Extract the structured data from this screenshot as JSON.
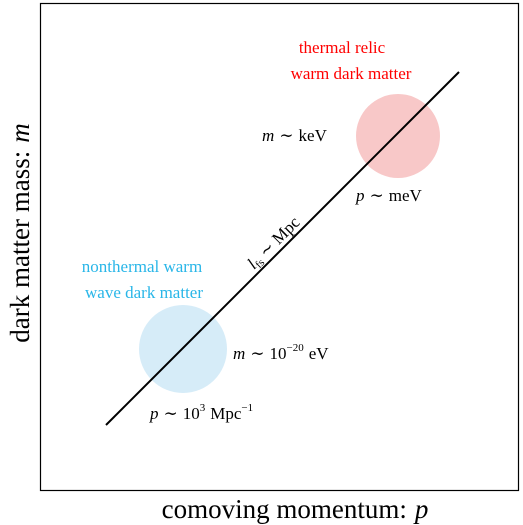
{
  "axes": {
    "xlabel_text": "comoving momentum:",
    "xlabel_var": "p",
    "ylabel_text": "dark matter mass:",
    "ylabel_var": "m"
  },
  "line_label": {
    "var": "l",
    "sub": "fs",
    "rel": "∼",
    "unit": "Mpc"
  },
  "thermal": {
    "title_line1": "thermal relic",
    "title_line2": "warm dark matter",
    "mass_var": "m",
    "mass_rel": "∼",
    "mass_unit": "keV",
    "mom_var": "p",
    "mom_rel": "∼",
    "mom_unit": "meV",
    "color": "#ff0000",
    "circle_color": "#f8c8c8"
  },
  "nonthermal": {
    "title_line1": "nonthermal warm",
    "title_line2": "wave dark matter",
    "mass_var": "m",
    "mass_rel": "∼",
    "mass_base": "10",
    "mass_exp": "−20",
    "mass_unit": "eV",
    "mom_var": "p",
    "mom_rel": "∼",
    "mom_base": "10",
    "mom_exp": "3",
    "mom_unit": "Mpc",
    "mom_unit_exp": "−1",
    "color": "#29b6e8",
    "circle_color": "#d6ecf8"
  }
}
